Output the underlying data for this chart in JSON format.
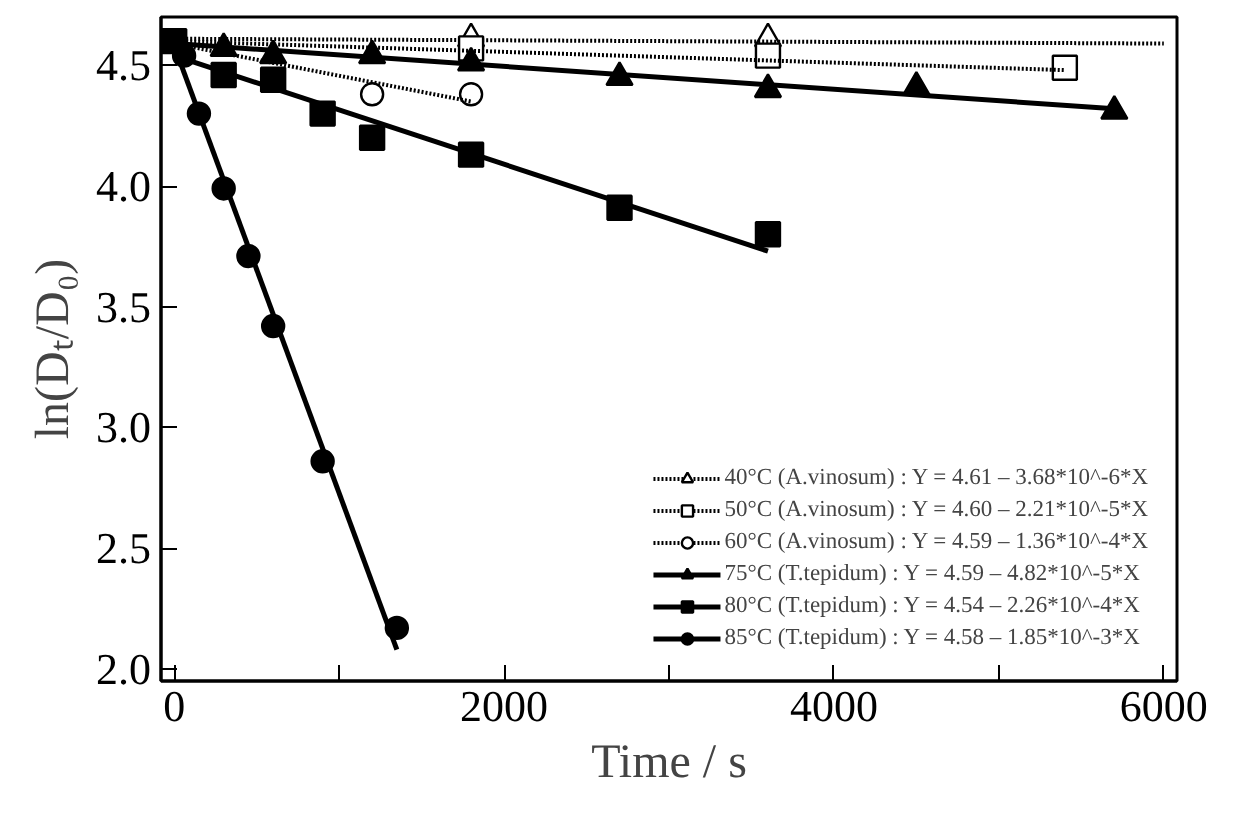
{
  "chart_data": {
    "type": "scatter",
    "xlabel": "Time / s",
    "ylabel": "ln(Dₜ/D₀)",
    "xlim": [
      -80,
      6080
    ],
    "ylim": [
      1.95,
      4.7
    ],
    "xticks": [
      0,
      {
        "value": 1000,
        "label": null
      },
      2000,
      {
        "value": 3000,
        "label": null
      },
      4000,
      {
        "value": 5000,
        "label": null
      },
      6000
    ],
    "yticks": [
      {
        "value": 2,
        "label": "2.0"
      },
      {
        "value": 2.5,
        "label": "2.5"
      },
      {
        "value": 3,
        "label": "3.0"
      },
      {
        "value": 3.5,
        "label": "3.5"
      },
      {
        "value": 4,
        "label": "4.0"
      },
      {
        "value": 4.5,
        "label": "4.5"
      }
    ],
    "grid": false,
    "legend": "bottom right",
    "series": [
      {
        "name": "40°C (A.vinosum) : Y = 4.61 – 3.68*10^-6*X",
        "color": "#ffffff",
        "marker": "triangle",
        "line_style": "dotted",
        "x": [
          1800,
          3600
        ],
        "values": [
          4.61,
          4.61
        ]
      },
      {
        "type": "line",
        "color": "#000000",
        "line_style": "dotted",
        "x": [
          0,
          6000
        ],
        "values": [
          4.61,
          4.59
        ]
      },
      {
        "name": "50°C (A.vinosum) : Y = 4.60 – 2.21*10^-5*X",
        "color": "#ffffff",
        "marker": "square",
        "line_style": "dotted",
        "x": [
          1800,
          3600,
          5400
        ],
        "values": [
          4.57,
          4.54,
          4.49
        ]
      },
      {
        "type": "line",
        "color": "#000000",
        "line_style": "dotted",
        "x": [
          0,
          5400
        ],
        "values": [
          4.6,
          4.48
        ]
      },
      {
        "name": "60°C (A.vinosum) : Y = 4.59 – 1.36*10^-4*X",
        "color": "#ffffff",
        "marker": "circle",
        "line_style": "dotted",
        "x": [
          1200,
          1800
        ],
        "values": [
          4.38,
          4.38
        ]
      },
      {
        "type": "line",
        "color": "#000000",
        "line_style": "dotted",
        "x": [
          0,
          1800
        ],
        "values": [
          4.59,
          4.35
        ]
      },
      {
        "name": "75°C (T.tepidum) : Y = 4.59 – 4.82*10^-5*X",
        "color": "#000000",
        "marker": "triangle",
        "line_style": "solid",
        "x": [
          300,
          600,
          1200,
          1800,
          2700,
          3600,
          4500,
          5700
        ],
        "values": [
          4.57,
          4.54,
          4.54,
          4.51,
          4.45,
          4.4,
          4.41,
          4.31
        ]
      },
      {
        "type": "line",
        "color": "#000000",
        "line_style": "solid",
        "x": [
          0,
          5700
        ],
        "values": [
          4.59,
          4.32
        ]
      },
      {
        "name": "80°C (T.tepidum) : Y = 4.54 – 2.26*10^-4*X",
        "color": "#000000",
        "marker": "square",
        "line_style": "solid",
        "x": [
          0,
          300,
          600,
          900,
          1200,
          1800,
          2700,
          3600
        ],
        "values": [
          4.6,
          4.46,
          4.44,
          4.3,
          4.2,
          4.13,
          3.91,
          3.8
        ]
      },
      {
        "type": "line",
        "color": "#000000",
        "line_style": "solid",
        "x": [
          0,
          3600
        ],
        "values": [
          4.54,
          3.73
        ]
      },
      {
        "name": "85°C (T.tepidum) : Y = 4.58 – 1.85*10^-3*X",
        "color": "#000000",
        "marker": "circle",
        "line_style": "solid",
        "x": [
          60,
          150,
          300,
          450,
          600,
          900,
          1350
        ],
        "values": [
          4.54,
          4.3,
          3.99,
          3.71,
          3.42,
          2.86,
          2.17
        ]
      },
      {
        "type": "line",
        "color": "#000000",
        "line_style": "solid",
        "x": [
          0,
          1350
        ],
        "values": [
          4.58,
          2.08
        ]
      }
    ]
  }
}
